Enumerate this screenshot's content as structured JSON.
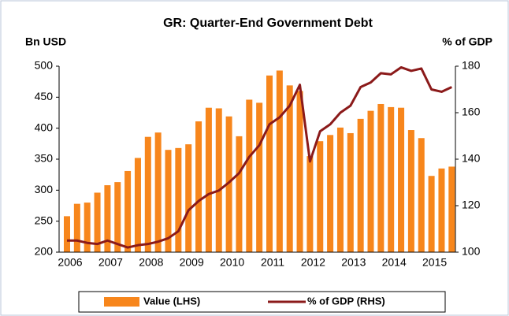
{
  "chart_data": {
    "type": "bar_line",
    "title": "GR: Quarter-End Government Debt",
    "y_label": "Bn USD",
    "y2_label": "% of GDP",
    "categories": [
      "2006",
      null,
      null,
      null,
      "2007",
      null,
      null,
      null,
      "2008",
      null,
      null,
      null,
      "2009",
      null,
      null,
      null,
      "2010",
      null,
      null,
      null,
      "2011",
      null,
      null,
      null,
      "2012",
      null,
      null,
      null,
      "2013",
      null,
      null,
      null,
      "2014",
      null,
      null,
      null,
      "2015",
      null,
      null
    ],
    "series": [
      {
        "name": "Value (LHS)",
        "color": "#f7861c",
        "type": "bar",
        "values": [
          258,
          278,
          280,
          296,
          308,
          313,
          331,
          352,
          386,
          393,
          365,
          368,
          374,
          411,
          433,
          432,
          419,
          387,
          446,
          441,
          485,
          493,
          469,
          460,
          355,
          379,
          389,
          401,
          392,
          415,
          428,
          439,
          434,
          433,
          397,
          384,
          323,
          335,
          338
        ]
      },
      {
        "name": "% of  GDP (RHS)",
        "color": "#8b1a1a",
        "type": "line",
        "axis": "y2",
        "values": [
          105,
          105,
          104,
          103.5,
          105,
          103.5,
          102,
          103,
          103.5,
          104.5,
          106,
          109,
          118,
          122,
          125,
          126.5,
          130,
          134,
          141,
          146,
          155,
          158,
          163,
          172,
          139,
          152,
          155,
          160,
          163,
          171,
          173,
          177,
          176.5,
          179.5,
          178,
          179,
          170,
          169,
          171
        ]
      }
    ],
    "ylim": [
      200,
      500
    ],
    "yticks": [
      200,
      250,
      300,
      350,
      400,
      450,
      500
    ],
    "y2lim": [
      100,
      180
    ],
    "y2ticks": [
      100,
      120,
      140,
      160,
      180
    ],
    "legend": "bottom"
  }
}
